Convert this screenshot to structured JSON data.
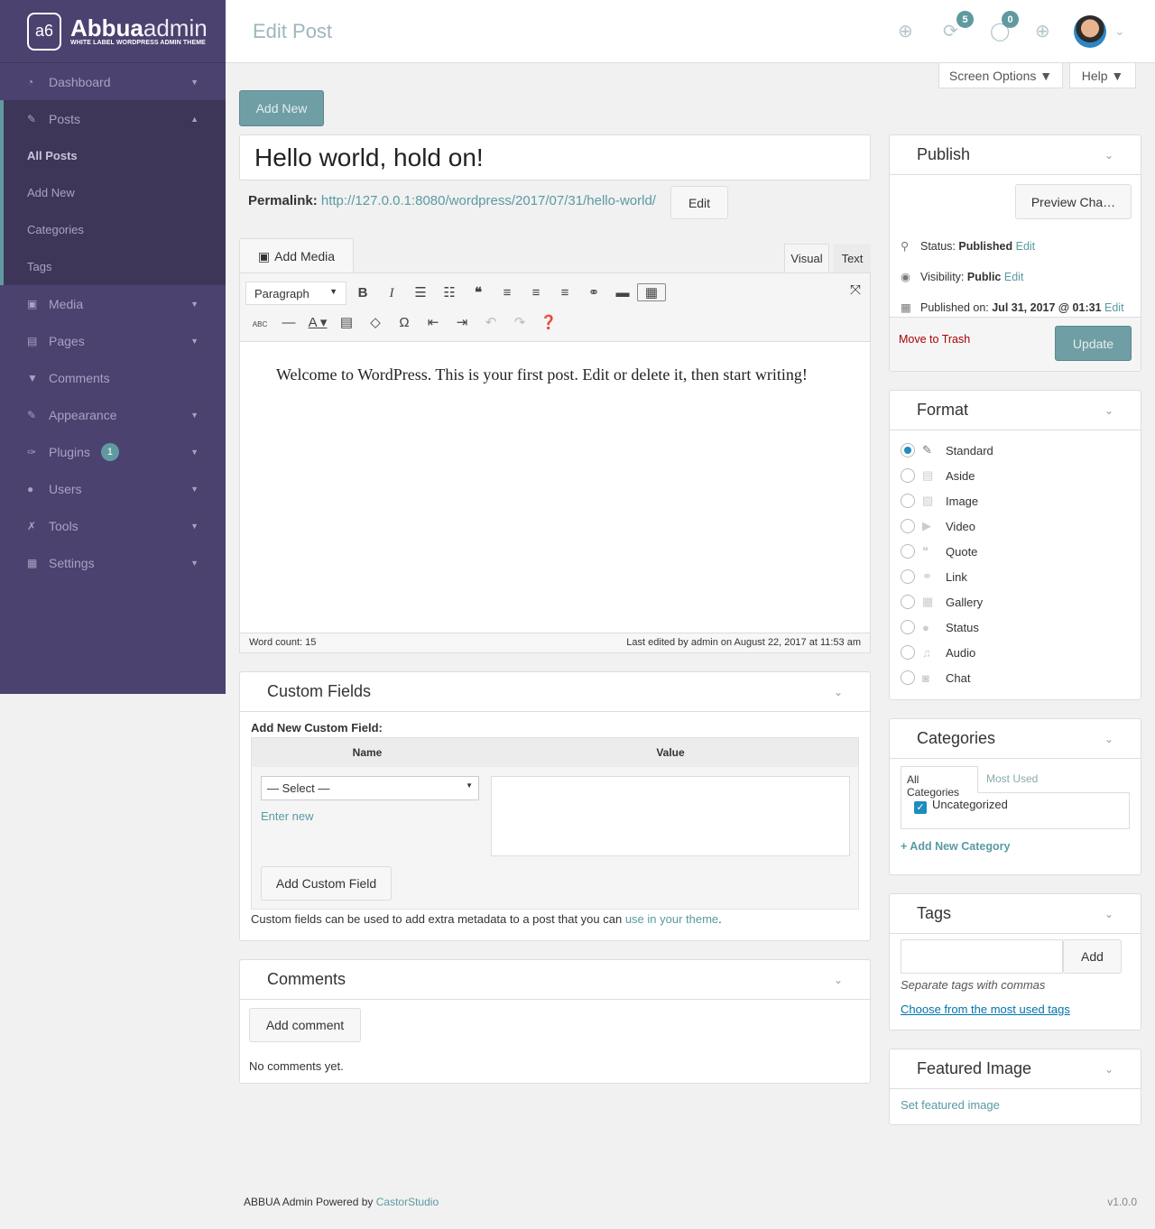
{
  "brand": {
    "name_bold": "Abbua",
    "name_light": "admin",
    "tagline": "WHITE LABEL WORDPRESS ADMIN THEME",
    "logo_mark": "a6"
  },
  "sidebar": {
    "items": [
      {
        "label": "Dashboard",
        "icon": "dashboard-icon",
        "glyph": "◔"
      },
      {
        "label": "Posts",
        "icon": "pin-icon",
        "glyph": "✎"
      },
      {
        "label": "Media",
        "icon": "media-icon",
        "glyph": "▣"
      },
      {
        "label": "Pages",
        "icon": "pages-icon",
        "glyph": "▤"
      },
      {
        "label": "Comments",
        "icon": "comment-icon",
        "glyph": "▼"
      },
      {
        "label": "Appearance",
        "icon": "brush-icon",
        "glyph": "✎"
      },
      {
        "label": "Plugins",
        "icon": "plugin-icon",
        "glyph": "✑",
        "badge": "1"
      },
      {
        "label": "Users",
        "icon": "user-icon",
        "glyph": "●"
      },
      {
        "label": "Tools",
        "icon": "wrench-icon",
        "glyph": "✗"
      },
      {
        "label": "Settings",
        "icon": "settings-icon",
        "glyph": "▦"
      }
    ],
    "posts_submenu": [
      "All Posts",
      "Add New",
      "Categories",
      "Tags"
    ]
  },
  "header": {
    "title": "Edit Post",
    "updates_count": "5",
    "comments_count": "0",
    "screen_options": "Screen Options ▼",
    "help": "Help ▼"
  },
  "colors": {
    "sidebar": "#4b4270",
    "accent": "#5f9aa0",
    "link": "#5a9aa3",
    "trash": "#a00"
  },
  "editor": {
    "add_new": "Add New",
    "post_title": "Hello world, hold on!",
    "permalink_label": "Permalink:",
    "permalink_url": "http://127.0.0.1:8080/wordpress/2017/07/31/hello-world/",
    "edit": "Edit",
    "add_media": "Add Media",
    "tab_visual": "Visual",
    "tab_text": "Text",
    "format_select": "Paragraph",
    "content": "Welcome to WordPress. This is your first post. Edit or delete it, then start writing!",
    "word_count": "Word count: 15",
    "last_edited": "Last edited by admin on August 22, 2017 at 11:53 am"
  },
  "custom_fields": {
    "title": "Custom Fields",
    "add_new_label": "Add New Custom Field:",
    "col_name": "Name",
    "col_value": "Value",
    "select": "— Select —",
    "enter_new": "Enter new",
    "add_button": "Add Custom Field",
    "help_text": "Custom fields can be used to add extra metadata to a post that you can ",
    "help_link": "use in your theme",
    "help_end": "."
  },
  "comments": {
    "title": "Comments",
    "add_button": "Add comment",
    "empty": "No comments yet."
  },
  "publish": {
    "title": "Publish",
    "preview": "Preview Cha…",
    "status_label": "Status: ",
    "status": "Published",
    "visibility_label": "Visibility: ",
    "visibility": "Public",
    "published_label": "Published on: ",
    "published": "Jul 31, 2017 @ 01:31",
    "edit": "Edit",
    "trash": "Move to Trash",
    "update": "Update"
  },
  "format": {
    "title": "Format",
    "selected": "Standard",
    "options": [
      {
        "label": "Standard",
        "glyph": "✎"
      },
      {
        "label": "Aside",
        "glyph": "▤"
      },
      {
        "label": "Image",
        "glyph": "▨"
      },
      {
        "label": "Video",
        "glyph": "▶"
      },
      {
        "label": "Quote",
        "glyph": "❝"
      },
      {
        "label": "Link",
        "glyph": "⚭"
      },
      {
        "label": "Gallery",
        "glyph": "▦"
      },
      {
        "label": "Status",
        "glyph": "●"
      },
      {
        "label": "Audio",
        "glyph": "♫"
      },
      {
        "label": "Chat",
        "glyph": "◙"
      }
    ]
  },
  "categories": {
    "title": "Categories",
    "tab_all": "All Categories",
    "tab_most": "Most Used",
    "items": [
      {
        "label": "Uncategorized",
        "checked": true
      }
    ],
    "add_new": "+ Add New Category"
  },
  "tags": {
    "title": "Tags",
    "input_value": "",
    "add": "Add",
    "hint": "Separate tags with commas",
    "choose": "Choose from the most used tags"
  },
  "featured_image": {
    "title": "Featured Image",
    "set": "Set featured image"
  },
  "footer": {
    "text": "ABBUA Admin Powered by ",
    "link": "CastorStudio",
    "version": "v1.0.0"
  }
}
